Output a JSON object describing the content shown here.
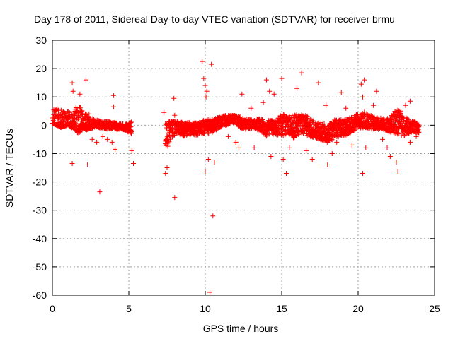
{
  "chart_data": {
    "type": "scatter",
    "title": "Day 178 of 2011, Sidereal Day-to-day VTEC variation (SDTVAR) for receiver brmu",
    "xlabel": "GPS time / hours",
    "ylabel": "SDTVAR / TECUs",
    "xlim": [
      0,
      25
    ],
    "ylim": [
      -60,
      30
    ],
    "xticks": [
      0,
      5,
      10,
      15,
      20,
      25
    ],
    "yticks": [
      -60,
      -50,
      -40,
      -30,
      -20,
      -10,
      0,
      10,
      20,
      30
    ],
    "xtick_labels": [
      "0",
      "5",
      "10",
      "15",
      "20",
      "25"
    ],
    "ytick_labels": [
      "-60",
      "-50",
      "-40",
      "-30",
      "-20",
      "-10",
      "0",
      "10",
      "20",
      "30"
    ],
    "grid": true,
    "marker": "+",
    "color": "#ff0000",
    "band_series": [
      [
        0.0,
        0.5,
        6.5,
        1.0
      ],
      [
        0.3,
        0.0,
        6.0,
        0.0
      ],
      [
        0.6,
        -0.5,
        5.5,
        -1.0
      ],
      [
        1.0,
        0.5,
        5.0,
        0.0
      ],
      [
        1.3,
        0.0,
        4.0,
        -1.0
      ],
      [
        1.7,
        0.0,
        8.0,
        -3.0
      ],
      [
        2.0,
        1.0,
        5.0,
        -2.0
      ],
      [
        2.4,
        0.5,
        3.0,
        -1.5
      ],
      [
        2.8,
        0.5,
        2.0,
        -1.0
      ],
      [
        3.2,
        0.0,
        1.5,
        -1.0
      ],
      [
        3.6,
        0.0,
        1.5,
        -1.5
      ],
      [
        4.0,
        0.0,
        1.0,
        -1.5
      ],
      [
        4.5,
        -0.5,
        0.5,
        -1.5
      ],
      [
        4.8,
        -1.0,
        0.5,
        -2.0
      ],
      [
        5.2,
        -1.0,
        1.5,
        -3.0
      ],
      [
        7.4,
        -2.0,
        0.5,
        -10.0
      ],
      [
        7.7,
        0.5,
        1.5,
        -5.0
      ],
      [
        8.1,
        0.0,
        1.5,
        -3.0
      ],
      [
        8.6,
        -1.5,
        1.0,
        -4.0
      ],
      [
        9.0,
        -1.0,
        1.0,
        -3.5
      ],
      [
        9.5,
        -0.5,
        1.0,
        -3.5
      ],
      [
        10.0,
        -0.5,
        2.0,
        -3.0
      ],
      [
        10.4,
        0.5,
        2.0,
        -3.0
      ],
      [
        10.9,
        1.5,
        3.0,
        -1.0
      ],
      [
        11.4,
        2.5,
        3.5,
        0.0
      ],
      [
        11.9,
        3.0,
        3.5,
        1.0
      ],
      [
        12.3,
        1.0,
        3.0,
        -1.0
      ],
      [
        12.7,
        0.5,
        2.5,
        -1.5
      ],
      [
        13.1,
        0.0,
        2.0,
        -1.0
      ],
      [
        13.6,
        -0.5,
        2.5,
        -2.0
      ],
      [
        14.0,
        -1.5,
        1.5,
        -4.0
      ],
      [
        14.3,
        0.0,
        2.0,
        -3.0
      ],
      [
        14.6,
        -1.0,
        1.5,
        -3.5
      ],
      [
        15.0,
        2.0,
        4.0,
        -4.0
      ],
      [
        15.4,
        1.0,
        3.5,
        -3.0
      ],
      [
        15.8,
        -2.0,
        3.5,
        -4.5
      ],
      [
        16.3,
        2.0,
        4.0,
        -3.0
      ],
      [
        16.8,
        -1.5,
        3.0,
        -4.0
      ],
      [
        17.2,
        -2.0,
        1.5,
        -4.5
      ],
      [
        17.6,
        -3.0,
        1.0,
        -5.5
      ],
      [
        18.0,
        -3.0,
        0.5,
        -6.0
      ],
      [
        18.5,
        -1.0,
        2.0,
        -4.5
      ],
      [
        19.0,
        -1.5,
        2.0,
        -4.0
      ],
      [
        19.5,
        0.0,
        3.0,
        -3.0
      ],
      [
        20.0,
        1.0,
        4.0,
        -1.0
      ],
      [
        20.5,
        1.0,
        5.0,
        -1.0
      ],
      [
        21.0,
        0.5,
        3.0,
        -1.5
      ],
      [
        21.5,
        0.0,
        2.5,
        -1.5
      ],
      [
        22.0,
        -0.5,
        2.5,
        -2.5
      ],
      [
        22.5,
        1.0,
        6.0,
        -3.0
      ],
      [
        22.9,
        -1.0,
        4.0,
        -4.0
      ],
      [
        23.3,
        -1.0,
        2.0,
        -3.0
      ],
      [
        23.7,
        -1.0,
        1.5,
        -2.5
      ],
      [
        24.0,
        -1.0,
        0.0,
        -3.0
      ]
    ],
    "outliers": [
      [
        1.3,
        15
      ],
      [
        1.35,
        12
      ],
      [
        1.3,
        -13.5
      ],
      [
        1.8,
        11
      ],
      [
        1.9,
        5
      ],
      [
        2.2,
        16
      ],
      [
        2.3,
        -14
      ],
      [
        2.4,
        4
      ],
      [
        2.6,
        -5
      ],
      [
        2.9,
        -6
      ],
      [
        3.1,
        -23.5
      ],
      [
        3.3,
        -4
      ],
      [
        3.6,
        -5
      ],
      [
        3.9,
        -6
      ],
      [
        4.0,
        10.5
      ],
      [
        4.0,
        6.5
      ],
      [
        4.1,
        -8.5
      ],
      [
        5.2,
        -9
      ],
      [
        5.3,
        -13.5
      ],
      [
        7.3,
        4.5
      ],
      [
        7.4,
        -17
      ],
      [
        7.5,
        -15
      ],
      [
        7.95,
        9.5
      ],
      [
        8.0,
        -25.5
      ],
      [
        8.0,
        3.5
      ],
      [
        9.8,
        22.5
      ],
      [
        9.9,
        16.5
      ],
      [
        10.0,
        14
      ],
      [
        10.1,
        12
      ],
      [
        10.05,
        10
      ],
      [
        10.0,
        -16.5
      ],
      [
        10.2,
        -12
      ],
      [
        10.4,
        21.5
      ],
      [
        10.5,
        -32
      ],
      [
        10.3,
        -59
      ],
      [
        10.6,
        -13
      ],
      [
        11.5,
        -4
      ],
      [
        12.0,
        -6
      ],
      [
        12.2,
        -8
      ],
      [
        12.4,
        11
      ],
      [
        13.0,
        6
      ],
      [
        13.2,
        -8
      ],
      [
        13.8,
        8
      ],
      [
        14.0,
        16
      ],
      [
        14.2,
        12
      ],
      [
        14.5,
        11
      ],
      [
        14.3,
        -11
      ],
      [
        15.0,
        16.5
      ],
      [
        15.1,
        -12
      ],
      [
        15.3,
        -17
      ],
      [
        15.5,
        -8
      ],
      [
        16.0,
        13
      ],
      [
        16.3,
        18.5
      ],
      [
        16.6,
        -9
      ],
      [
        17.0,
        -12
      ],
      [
        17.4,
        15
      ],
      [
        17.9,
        7
      ],
      [
        18.0,
        -14
      ],
      [
        18.3,
        -10
      ],
      [
        18.6,
        -6
      ],
      [
        18.9,
        11.5
      ],
      [
        19.2,
        6
      ],
      [
        19.6,
        -7
      ],
      [
        20.2,
        14.5
      ],
      [
        20.3,
        10
      ],
      [
        20.4,
        16
      ],
      [
        20.3,
        -17
      ],
      [
        20.5,
        -8
      ],
      [
        21.0,
        7
      ],
      [
        21.2,
        12
      ],
      [
        21.6,
        -5
      ],
      [
        21.9,
        -8
      ],
      [
        22.1,
        -11
      ],
      [
        22.5,
        -13
      ],
      [
        22.6,
        -16.5
      ],
      [
        22.8,
        5
      ],
      [
        23.1,
        7
      ],
      [
        23.4,
        8.5
      ],
      [
        23.4,
        -6
      ],
      [
        23.8,
        -4
      ]
    ]
  }
}
